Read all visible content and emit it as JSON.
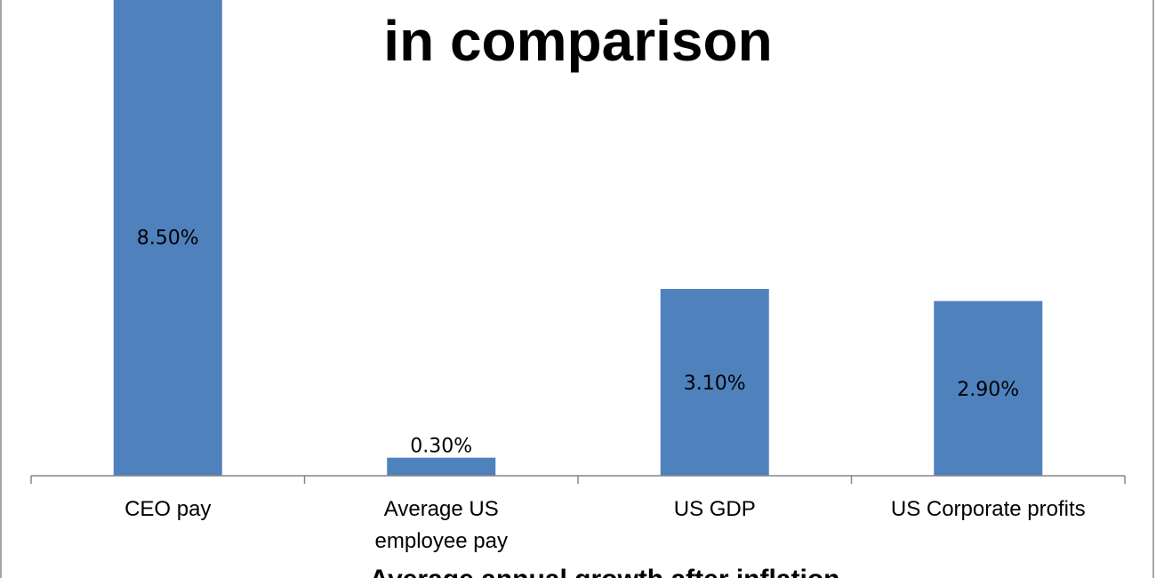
{
  "chart_data": {
    "type": "bar",
    "title": "in comparison",
    "xlabel": "Average annual growth after inflation",
    "ylabel": "",
    "categories": [
      [
        "CEO pay"
      ],
      [
        "Average US",
        "employee pay"
      ],
      [
        "US GDP"
      ],
      [
        "US Corporate profits"
      ]
    ],
    "values": [
      8.5,
      0.3,
      3.1,
      2.9
    ],
    "data_labels": [
      "8.50%",
      "0.30%",
      "3.10%",
      "2.90%"
    ],
    "ylim": [
      0,
      6.75
    ],
    "grid": false,
    "legend": "none",
    "bar_color": "#4f81bd"
  }
}
